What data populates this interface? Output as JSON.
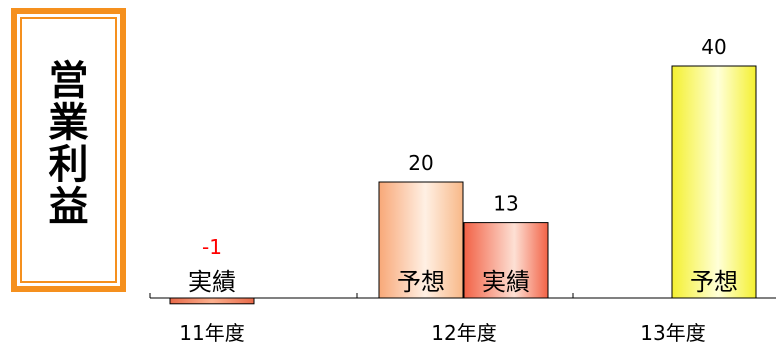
{
  "label_box": {
    "chars": [
      "営",
      "業",
      "利",
      "益"
    ]
  },
  "chart_data": {
    "type": "bar",
    "categories": [
      "11年度",
      "12年度",
      "13年度"
    ],
    "ylim": [
      -1,
      40
    ],
    "grid": false,
    "bars": [
      {
        "category": "11年度",
        "kind": "実績",
        "value": -1,
        "value_label": "-1",
        "color": "#f08a6a"
      },
      {
        "category": "12年度",
        "kind": "予想",
        "value": 20,
        "value_label": "20",
        "color": "#fcc9a0"
      },
      {
        "category": "12年度",
        "kind": "実績",
        "value": 13,
        "value_label": "13",
        "color": "#f57a5e"
      },
      {
        "category": "13年度",
        "kind": "予想",
        "value": 40,
        "value_label": "40",
        "color": "#fbfb7a"
      }
    ]
  }
}
